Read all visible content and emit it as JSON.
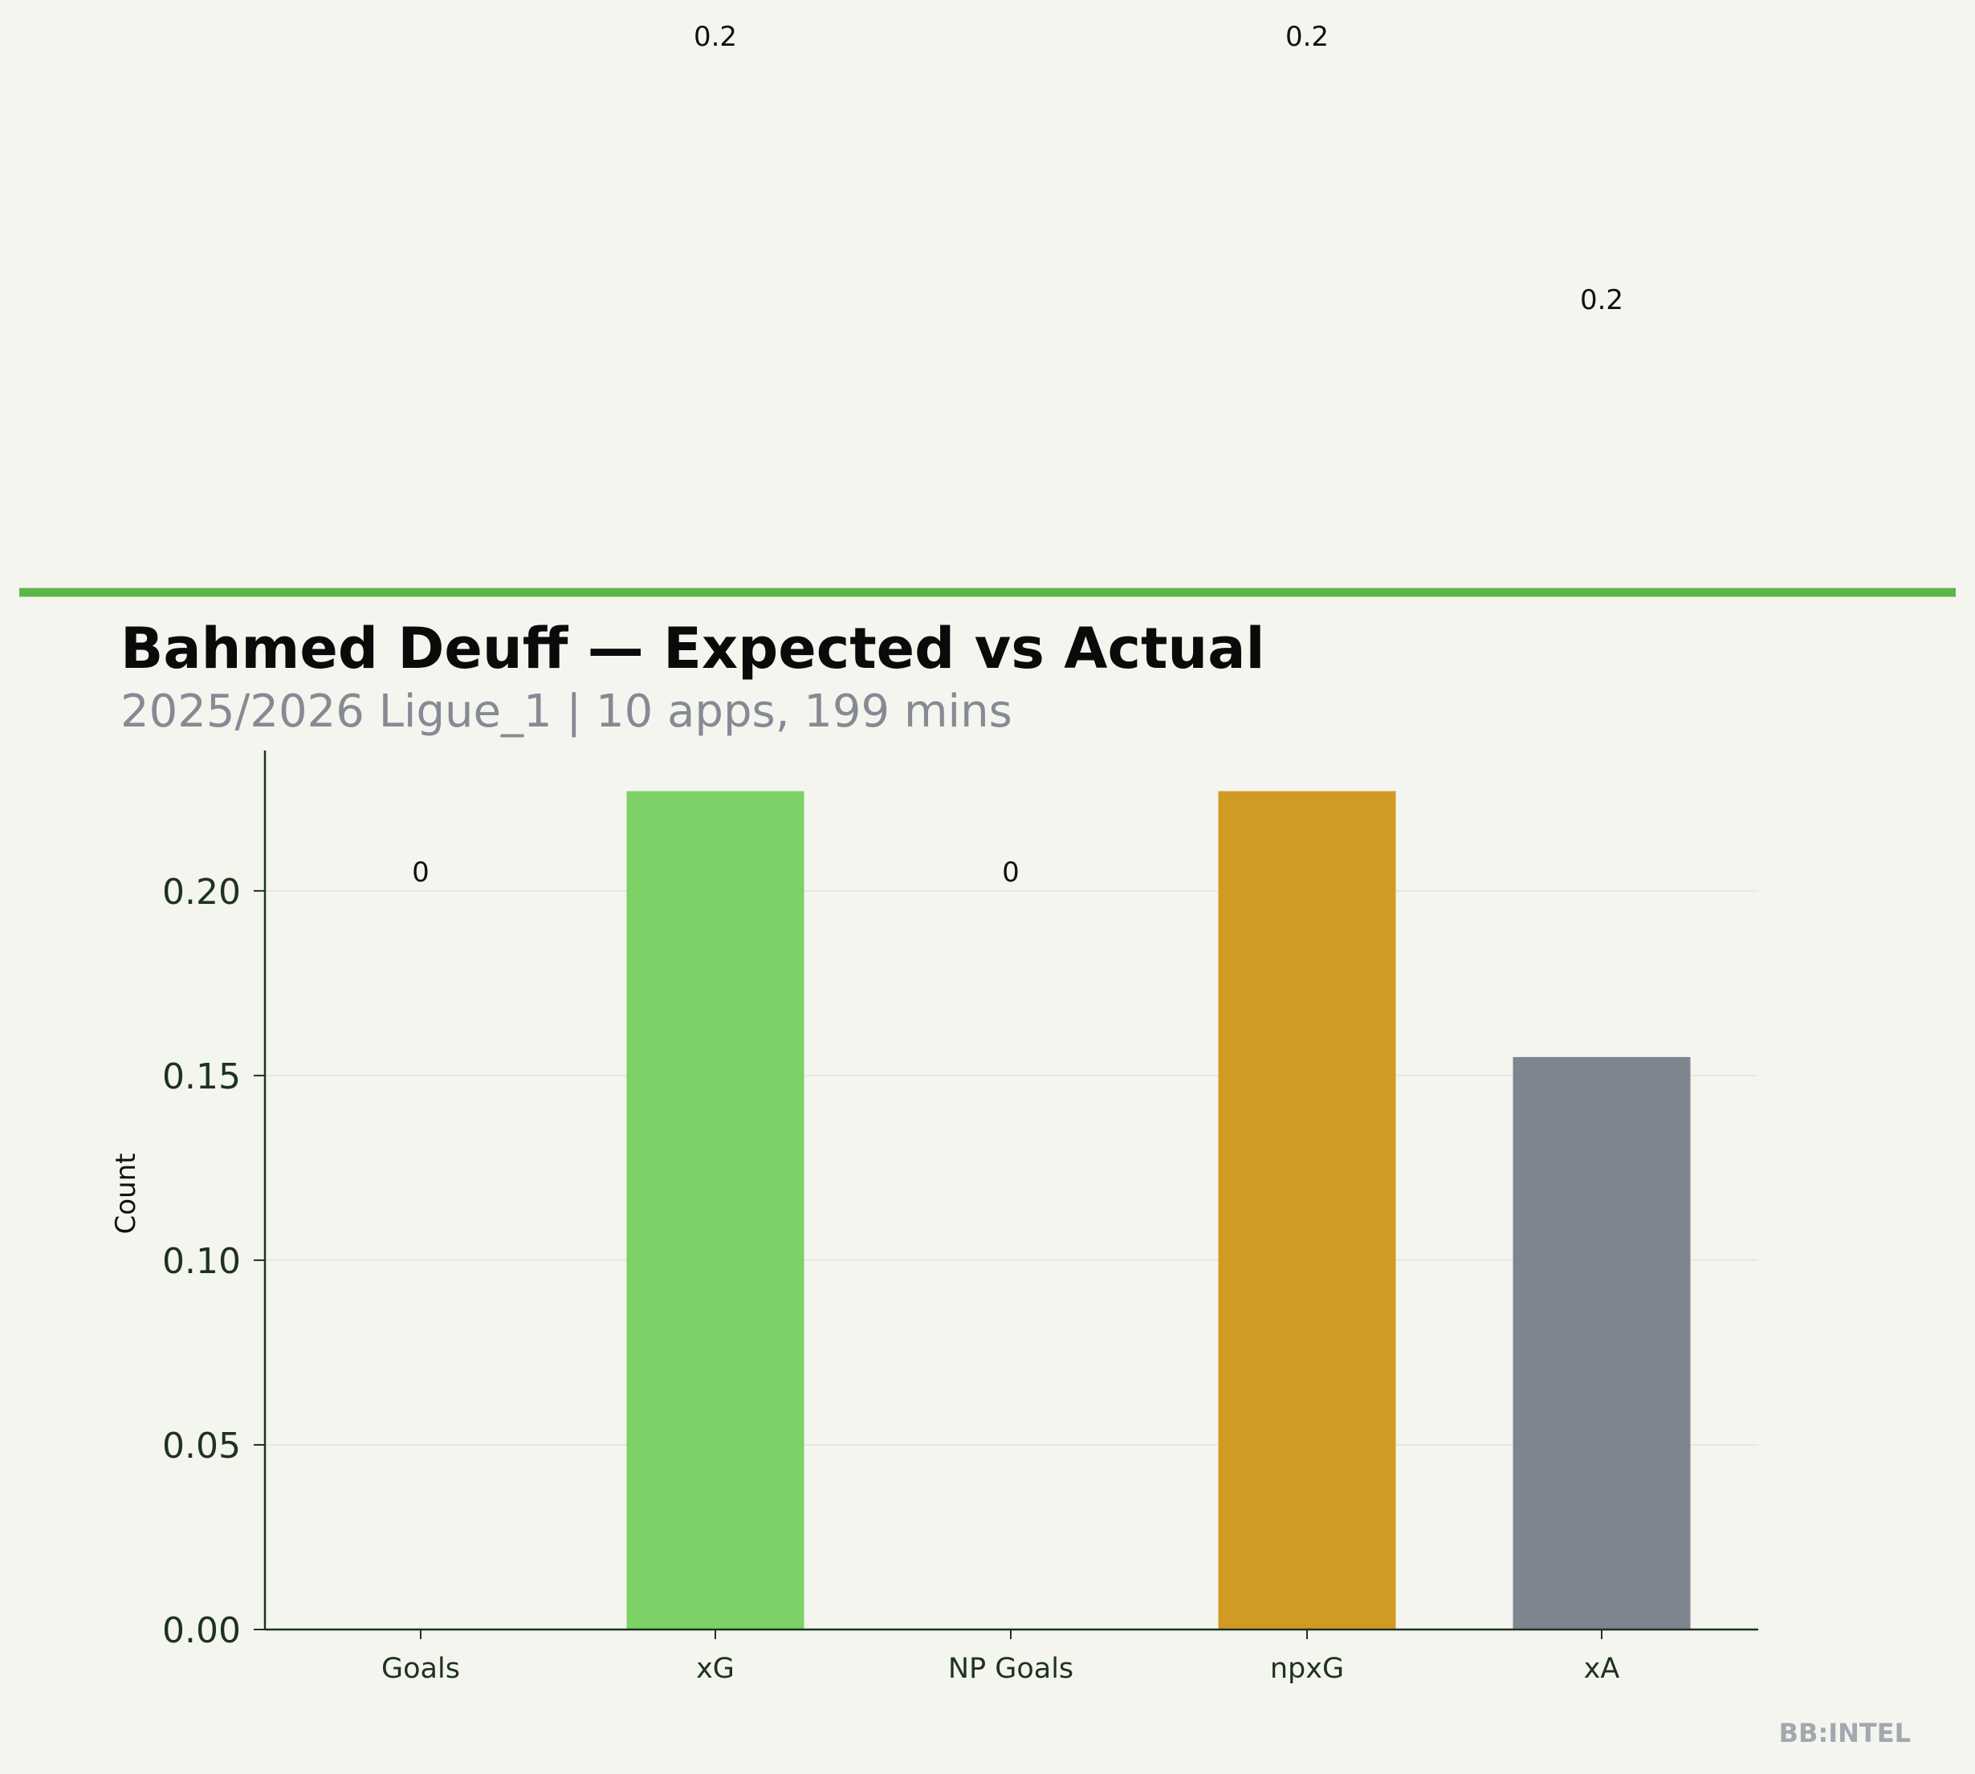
{
  "chart_data": {
    "type": "bar",
    "title": "Bahmed Deuff — Expected vs Actual",
    "subtitle": "2025/2026 Ligue_1 | 10 apps, 199 mins",
    "ylabel": "Count",
    "xlabel": "",
    "categories": [
      "Goals",
      "xG",
      "NP Goals",
      "npxG",
      "xA"
    ],
    "values": [
      0,
      0.227,
      0,
      0.227,
      0.155
    ],
    "data_labels": [
      "0",
      "0.2",
      "0",
      "0.2",
      "0.2"
    ],
    "colors": [
      "#7dd167",
      "#7dd167",
      "#7dd167",
      "#d19a24",
      "#7f858f"
    ],
    "ylim": [
      0,
      0.238
    ],
    "yticks": [
      "0.00",
      "0.05",
      "0.10",
      "0.15",
      "0.20"
    ],
    "grid": "y",
    "legend": "none",
    "accent_color": "#5bb64a"
  },
  "watermark": "BB:INTEL"
}
